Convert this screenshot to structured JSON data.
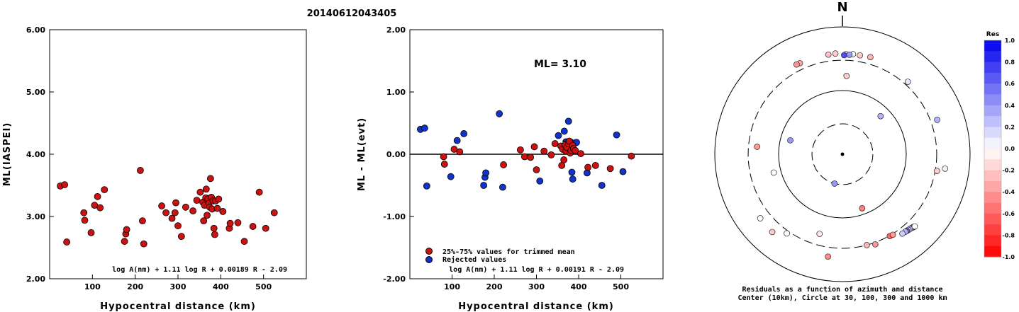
{
  "title": "20140612043405",
  "colors": {
    "trimmed": "#cc1111",
    "rejected": "#1133cc",
    "neg_full": "#ff0000",
    "pos_full": "#0000ee"
  },
  "chart_data": [
    {
      "type": "scatter",
      "xlabel": "Hypocentral distance (km)",
      "ylabel": "ML(IASPEI)",
      "xlim": [
        0,
        600
      ],
      "ylim": [
        2.0,
        6.0
      ],
      "x_ticks": [
        "100",
        "200",
        "300",
        "400",
        "500"
      ],
      "y_ticks": [
        "2.00",
        "3.00",
        "4.00",
        "5.00",
        "6.00"
      ],
      "formula": "log A(nm) + 1.11 log R + 0.00189 R - 2.09",
      "points": [
        [
          25,
          3.49
        ],
        [
          35,
          3.51
        ],
        [
          40,
          2.59
        ],
        [
          80,
          3.06
        ],
        [
          82,
          2.94
        ],
        [
          97,
          2.74
        ],
        [
          105,
          3.18
        ],
        [
          112,
          3.32
        ],
        [
          118,
          3.14
        ],
        [
          128,
          3.43
        ],
        [
          175,
          2.6
        ],
        [
          178,
          2.72
        ],
        [
          180,
          2.79
        ],
        [
          212,
          3.74
        ],
        [
          217,
          2.93
        ],
        [
          220,
          2.56
        ],
        [
          262,
          3.17
        ],
        [
          272,
          3.06
        ],
        [
          286,
          2.97
        ],
        [
          293,
          3.06
        ],
        [
          295,
          3.22
        ],
        [
          300,
          2.85
        ],
        [
          308,
          2.68
        ],
        [
          318,
          3.15
        ],
        [
          335,
          3.09
        ],
        [
          344,
          3.26
        ],
        [
          352,
          3.39
        ],
        [
          358,
          3.23
        ],
        [
          360,
          2.93
        ],
        [
          362,
          3.18
        ],
        [
          365,
          3.3
        ],
        [
          366,
          3.44
        ],
        [
          368,
          3.02
        ],
        [
          370,
          3.28
        ],
        [
          372,
          3.21
        ],
        [
          374,
          3.15
        ],
        [
          376,
          3.61
        ],
        [
          378,
          3.31
        ],
        [
          380,
          3.12
        ],
        [
          382,
          3.25
        ],
        [
          384,
          2.81
        ],
        [
          386,
          2.71
        ],
        [
          388,
          3.25
        ],
        [
          392,
          3.13
        ],
        [
          395,
          3.28
        ],
        [
          405,
          3.08
        ],
        [
          420,
          2.81
        ],
        [
          422,
          2.89
        ],
        [
          440,
          2.9
        ],
        [
          455,
          2.6
        ],
        [
          475,
          2.84
        ],
        [
          490,
          3.39
        ],
        [
          505,
          2.81
        ],
        [
          525,
          3.06
        ]
      ]
    },
    {
      "type": "scatter",
      "xlabel": "Hypocentral distance (km)",
      "ylabel": "ML - ML(evt)",
      "xlim": [
        0,
        600
      ],
      "ylim": [
        -2.0,
        2.0
      ],
      "x_ticks": [
        "100",
        "200",
        "300",
        "400",
        "500"
      ],
      "y_ticks": [
        "-2.00",
        "-1.00",
        "0.00",
        "1.00",
        "2.00"
      ],
      "formula": "log A(nm) + 1.11 log R + 0.00191 R - 2.09",
      "ml_label": "ML= 3.10",
      "legend": [
        "25%-75% values for trimmed mean",
        "Rejected values"
      ],
      "trimmed_points": [
        [
          80,
          -0.04
        ],
        [
          82,
          -0.16
        ],
        [
          105,
          0.08
        ],
        [
          118,
          0.04
        ],
        [
          222,
          -0.17
        ],
        [
          262,
          0.07
        ],
        [
          272,
          -0.04
        ],
        [
          286,
          -0.05
        ],
        [
          295,
          0.12
        ],
        [
          300,
          -0.25
        ],
        [
          318,
          0.05
        ],
        [
          335,
          -0.01
        ],
        [
          344,
          0.17
        ],
        [
          358,
          0.13
        ],
        [
          360,
          -0.18
        ],
        [
          362,
          0.08
        ],
        [
          365,
          -0.09
        ],
        [
          368,
          0.15
        ],
        [
          370,
          0.05
        ],
        [
          372,
          0.11
        ],
        [
          376,
          0.17
        ],
        [
          378,
          0.21
        ],
        [
          380,
          0.02
        ],
        [
          382,
          0.06
        ],
        [
          386,
          0.14
        ],
        [
          388,
          0.09
        ],
        [
          392,
          0.06
        ],
        [
          405,
          0.01
        ],
        [
          422,
          -0.21
        ],
        [
          440,
          -0.18
        ],
        [
          475,
          -0.23
        ],
        [
          525,
          -0.03
        ]
      ],
      "rejected_points": [
        [
          25,
          0.4
        ],
        [
          35,
          0.42
        ],
        [
          40,
          -0.51
        ],
        [
          97,
          -0.36
        ],
        [
          112,
          0.22
        ],
        [
          128,
          0.33
        ],
        [
          175,
          -0.5
        ],
        [
          178,
          -0.37
        ],
        [
          180,
          -0.3
        ],
        [
          212,
          0.65
        ],
        [
          220,
          -0.53
        ],
        [
          308,
          -0.43
        ],
        [
          352,
          0.3
        ],
        [
          366,
          0.37
        ],
        [
          370,
          0.2
        ],
        [
          374,
          0.19
        ],
        [
          376,
          0.53
        ],
        [
          380,
          0.2
        ],
        [
          384,
          -0.29
        ],
        [
          386,
          -0.4
        ],
        [
          390,
          0.18
        ],
        [
          395,
          0.19
        ],
        [
          420,
          -0.3
        ],
        [
          455,
          -0.5
        ],
        [
          490,
          0.31
        ],
        [
          505,
          -0.28
        ]
      ]
    },
    {
      "type": "polar",
      "north_label": "N",
      "caption_line1": "Residuals as a function of azimuth and distance",
      "caption_line2": "Center (10km), Circle at 30, 100, 300 and 1000 km",
      "rings_km": [
        10,
        30,
        100,
        300,
        1000
      ],
      "points": [
        [
          352,
          380,
          -0.25
        ],
        [
          356,
          385,
          -0.2
        ],
        [
          2,
          375,
          -0.1
        ],
        [
          6,
          380,
          0.0
        ],
        [
          1,
          360,
          0.7
        ],
        [
          4,
          368,
          0.4
        ],
        [
          10,
          378,
          -0.2
        ],
        [
          16,
          386,
          -0.3
        ],
        [
          335,
          378,
          -0.35
        ],
        [
          333,
          382,
          -0.4
        ],
        [
          42,
          340,
          0.1
        ],
        [
          3,
          170,
          -0.2
        ],
        [
          45,
          70,
          0.3
        ],
        [
          70,
          380,
          0.3
        ],
        [
          275,
          220,
          -0.4
        ],
        [
          285,
          70,
          0.4
        ],
        [
          255,
          130,
          0.0
        ],
        [
          195,
          30,
          0.4
        ],
        [
          160,
          80,
          -0.5
        ],
        [
          100,
          320,
          -0.2
        ],
        [
          98,
          420,
          0.05
        ],
        [
          196,
          200,
          -0.1
        ],
        [
          215,
          330,
          0.0
        ],
        [
          232,
          430,
          0.0
        ],
        [
          188,
          420,
          -0.45
        ],
        [
          165,
          300,
          -0.3
        ],
        [
          160,
          320,
          -0.4
        ],
        [
          150,
          305,
          -0.6
        ],
        [
          148,
          310,
          -0.4
        ],
        [
          222,
          440,
          -0.2
        ],
        [
          136,
          395,
          0.05
        ],
        [
          136,
          390,
          0.2
        ],
        [
          137,
          385,
          0.4
        ],
        [
          138,
          380,
          0.3
        ],
        [
          139,
          376,
          0.2
        ],
        [
          140,
          372,
          0.6
        ],
        [
          141,
          368,
          0.3
        ],
        [
          143,
          364,
          0.2
        ],
        [
          135,
          400,
          0.0
        ]
      ]
    },
    {
      "type": "colorbar",
      "title": "Res",
      "labels": [
        "1.0",
        "0.8",
        "0.6",
        "0.4",
        "0.2",
        "0.0",
        "-0.2",
        "-0.4",
        "-0.6",
        "-0.8",
        "-1.0"
      ]
    }
  ]
}
